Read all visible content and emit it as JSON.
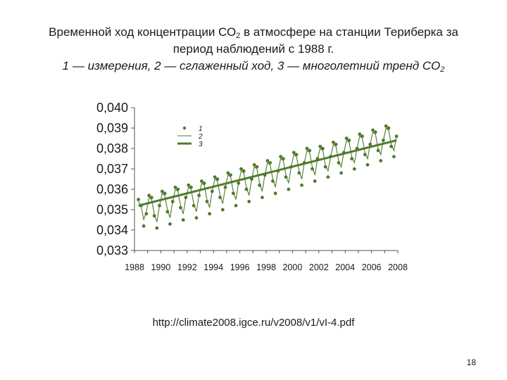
{
  "title": {
    "line1a": "Временной ход концентрации СО",
    "line1b": "2",
    "line1c": " в атмосфере на станции Териберка за",
    "line2": "период наблюдений с 1988 г.",
    "line3a": "1 — измерения, 2 — сглаженный ход, 3 — многолетний тренд СО",
    "line3b": "2"
  },
  "source": "http://climate2008.igce.ru/v2008/v1/vI-4.pdf",
  "page_number": "18",
  "colors": {
    "series": "#4f7a2b",
    "axis": "#555555"
  },
  "chart_data": {
    "type": "scatter",
    "title": "",
    "xlabel": "",
    "ylabel": "",
    "xlim": [
      1988,
      2008
    ],
    "ylim": [
      0.033,
      0.04
    ],
    "x_ticks": [
      "1988",
      "1990",
      "1992",
      "1994",
      "1996",
      "1998",
      "2000",
      "2002",
      "2004",
      "2006",
      "2008"
    ],
    "y_ticks": [
      "0,033",
      "0,034",
      "0,035",
      "0,036",
      "0,037",
      "0,038",
      "0,039",
      "0,040"
    ],
    "legend": {
      "position": "top-left",
      "entries": [
        "1",
        "2",
        "3"
      ]
    },
    "grid": false,
    "series": [
      {
        "name": "1",
        "kind": "points",
        "x": [
          1988.3,
          1988.5,
          1988.7,
          1988.9,
          1989.1,
          1989.3,
          1989.5,
          1989.7,
          1989.9,
          1990.1,
          1990.3,
          1990.5,
          1990.7,
          1990.9,
          1991.1,
          1991.3,
          1991.5,
          1991.7,
          1991.9,
          1992.1,
          1992.3,
          1992.5,
          1992.7,
          1992.9,
          1993.1,
          1993.3,
          1993.5,
          1993.7,
          1993.9,
          1994.1,
          1994.3,
          1994.5,
          1994.7,
          1994.9,
          1995.1,
          1995.3,
          1995.5,
          1995.7,
          1995.9,
          1996.1,
          1996.3,
          1996.5,
          1996.7,
          1996.9,
          1997.1,
          1997.3,
          1997.5,
          1997.7,
          1997.9,
          1998.1,
          1998.3,
          1998.5,
          1998.7,
          1998.9,
          1999.1,
          1999.3,
          1999.5,
          1999.7,
          1999.9,
          2000.1,
          2000.3,
          2000.5,
          2000.7,
          2000.9,
          2001.1,
          2001.3,
          2001.5,
          2001.7,
          2001.9,
          2002.1,
          2002.3,
          2002.5,
          2002.7,
          2002.9,
          2003.1,
          2003.3,
          2003.5,
          2003.7,
          2003.9,
          2004.1,
          2004.3,
          2004.5,
          2004.7,
          2004.9,
          2005.1,
          2005.3,
          2005.5,
          2005.7,
          2005.9,
          2006.1,
          2006.3,
          2006.5,
          2006.7,
          2006.9,
          2007.1,
          2007.3,
          2007.5,
          2007.7,
          2007.9
        ],
        "y": [
          0.0355,
          0.0352,
          0.0342,
          0.0348,
          0.0357,
          0.0356,
          0.0347,
          0.0341,
          0.0352,
          0.0359,
          0.0358,
          0.0349,
          0.0343,
          0.0354,
          0.0361,
          0.036,
          0.0351,
          0.0345,
          0.0356,
          0.0362,
          0.0361,
          0.0352,
          0.0346,
          0.0357,
          0.0364,
          0.0363,
          0.0354,
          0.0348,
          0.0359,
          0.0366,
          0.0365,
          0.0356,
          0.035,
          0.0361,
          0.0368,
          0.0367,
          0.0358,
          0.0352,
          0.0363,
          0.037,
          0.0369,
          0.036,
          0.0354,
          0.0365,
          0.0372,
          0.0371,
          0.0362,
          0.0356,
          0.0367,
          0.0374,
          0.0373,
          0.0364,
          0.0358,
          0.0369,
          0.0376,
          0.0375,
          0.0366,
          0.036,
          0.0371,
          0.0378,
          0.0377,
          0.0368,
          0.0362,
          0.0373,
          0.038,
          0.0379,
          0.037,
          0.0364,
          0.0375,
          0.0381,
          0.038,
          0.0371,
          0.0366,
          0.0376,
          0.0383,
          0.0382,
          0.0373,
          0.0368,
          0.0378,
          0.0385,
          0.0384,
          0.0375,
          0.037,
          0.038,
          0.0387,
          0.0386,
          0.0377,
          0.0372,
          0.0382,
          0.0389,
          0.0388,
          0.0379,
          0.0374,
          0.0384,
          0.0391,
          0.039,
          0.0381,
          0.0376,
          0.0386
        ]
      },
      {
        "name": "2",
        "kind": "smoothed",
        "x": [
          1988.3,
          1988.5,
          1988.7,
          1988.9,
          1989.1,
          1989.3,
          1989.5,
          1989.7,
          1989.9,
          1990.1,
          1990.3,
          1990.5,
          1990.7,
          1990.9,
          1991.1,
          1991.3,
          1991.5,
          1991.7,
          1991.9,
          1992.1,
          1992.3,
          1992.5,
          1992.7,
          1992.9,
          1993.1,
          1993.3,
          1993.5,
          1993.7,
          1993.9,
          1994.1,
          1994.3,
          1994.5,
          1994.7,
          1994.9,
          1995.1,
          1995.3,
          1995.5,
          1995.7,
          1995.9,
          1996.1,
          1996.3,
          1996.5,
          1996.7,
          1996.9,
          1997.1,
          1997.3,
          1997.5,
          1997.7,
          1997.9,
          1998.1,
          1998.3,
          1998.5,
          1998.7,
          1998.9,
          1999.1,
          1999.3,
          1999.5,
          1999.7,
          1999.9,
          2000.1,
          2000.3,
          2000.5,
          2000.7,
          2000.9,
          2001.1,
          2001.3,
          2001.5,
          2001.7,
          2001.9,
          2002.1,
          2002.3,
          2002.5,
          2002.7,
          2002.9,
          2003.1,
          2003.3,
          2003.5,
          2003.7,
          2003.9,
          2004.1,
          2004.3,
          2004.5,
          2004.7,
          2004.9,
          2005.1,
          2005.3,
          2005.5,
          2005.7,
          2005.9,
          2006.1,
          2006.3,
          2006.5,
          2006.7,
          2006.9,
          2007.1,
          2007.3,
          2007.5,
          2007.7,
          2007.9
        ],
        "y": [
          0.0354,
          0.0352,
          0.0345,
          0.0349,
          0.0356,
          0.0355,
          0.0348,
          0.0344,
          0.0352,
          0.0358,
          0.0357,
          0.035,
          0.0346,
          0.0354,
          0.036,
          0.0359,
          0.0352,
          0.0348,
          0.0356,
          0.0361,
          0.036,
          0.0353,
          0.0349,
          0.0357,
          0.0363,
          0.0362,
          0.0355,
          0.0351,
          0.0359,
          0.0365,
          0.0364,
          0.0357,
          0.0353,
          0.0361,
          0.0367,
          0.0366,
          0.0359,
          0.0355,
          0.0363,
          0.0369,
          0.0368,
          0.0361,
          0.0357,
          0.0365,
          0.0371,
          0.037,
          0.0363,
          0.0359,
          0.0367,
          0.0373,
          0.0372,
          0.0365,
          0.0361,
          0.0369,
          0.0375,
          0.0374,
          0.0367,
          0.0363,
          0.0371,
          0.0377,
          0.0376,
          0.0369,
          0.0365,
          0.0373,
          0.0379,
          0.0378,
          0.0371,
          0.0367,
          0.0375,
          0.038,
          0.0379,
          0.0372,
          0.0369,
          0.0376,
          0.0382,
          0.0381,
          0.0374,
          0.0371,
          0.0378,
          0.0384,
          0.0383,
          0.0376,
          0.0373,
          0.038,
          0.0386,
          0.0385,
          0.0378,
          0.0375,
          0.0382,
          0.0388,
          0.0387,
          0.038,
          0.0377,
          0.0384,
          0.039,
          0.0389,
          0.0382,
          0.0379,
          0.0386
        ]
      },
      {
        "name": "3",
        "kind": "trend",
        "x": [
          1988.3,
          2007.9
        ],
        "y": [
          0.0352,
          0.0384
        ]
      }
    ]
  }
}
